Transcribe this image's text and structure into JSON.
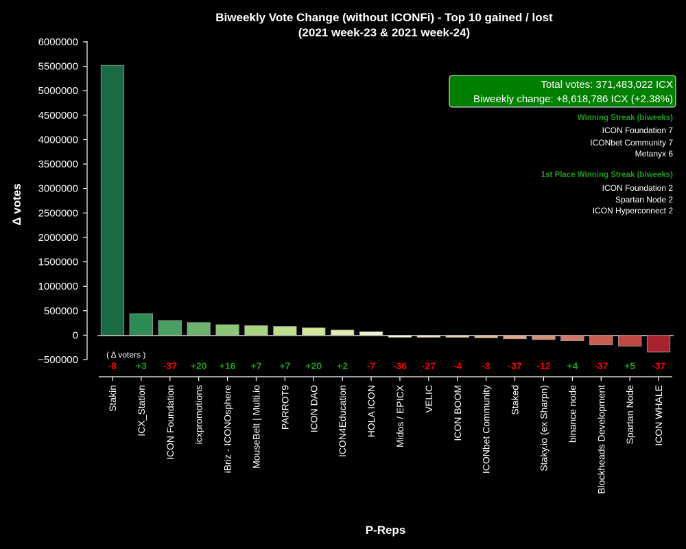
{
  "chart_data": {
    "type": "bar",
    "title_line1": "Biweekly Vote Change (without ICONFi) - Top 10 gained / lost",
    "title_line2": "(2021 week-23 & 2021 week-24)",
    "xlabel": "P-Reps",
    "ylabel": "Δ votes",
    "ylim": [
      -500000,
      6000000
    ],
    "yticks": [
      -500000,
      0,
      500000,
      1000000,
      1500000,
      2000000,
      2500000,
      3000000,
      3500000,
      4000000,
      4500000,
      5000000,
      5500000,
      6000000
    ],
    "categories": [
      "Stakin",
      "ICX_Station",
      "ICON Foundation",
      "icxpromotions",
      "iBriz - ICONOsphere",
      "MouseBelt | Multi.io",
      "PARROT9",
      "ICON DAO",
      "ICON4Education",
      "HOLA ICON",
      "Midos / EPICX",
      "VELIC",
      "ICON BOOM",
      "ICONbet Community",
      "Staked",
      "Staky.io (ex Sharpn)",
      "binance node",
      "Blockheads Development",
      "Spartan Node",
      "ICON WHALE"
    ],
    "values": [
      5520000,
      440000,
      300000,
      260000,
      215000,
      195000,
      180000,
      150000,
      105000,
      70000,
      -45000,
      -45000,
      -45000,
      -55000,
      -75000,
      -90000,
      -115000,
      -200000,
      -225000,
      -345000
    ],
    "colors": [
      "#1a6b45",
      "#2e8b57",
      "#4aa063",
      "#6cb36b",
      "#8cc574",
      "#a8d47e",
      "#bfe08a",
      "#d2e79a",
      "#e2eeb0",
      "#f1f5cc",
      "#f5f0d2",
      "#f0e0c0",
      "#ecd2b0",
      "#e6bea0",
      "#e0a888",
      "#d88f76",
      "#d27868",
      "#c9604f",
      "#bf4a43",
      "#a8232f"
    ],
    "delta_voters_label": "( Δ voters )",
    "delta_voters": [
      "-8",
      "+3",
      "-37",
      "+20",
      "+16",
      "+7",
      "+7",
      "+20",
      "+2",
      "-7",
      "-36",
      "-27",
      "-4",
      "-3",
      "-37",
      "-12",
      "+4",
      "-37",
      "+5",
      "-37"
    ],
    "grid": false
  },
  "info_box": {
    "line1": "Total votes: 371,483,022 ICX",
    "line2": "Biweekly change: +8,618,786 ICX (+2.38%)",
    "bg_color": "#008000"
  },
  "winning_streak": {
    "heading": "Winning Streak (biweeks)",
    "items": [
      "ICON Foundation  7",
      "ICONbet Community  7",
      "Metanyx  6"
    ]
  },
  "first_place_streak": {
    "heading": "1st Place Winning Streak (biweeks)",
    "items": [
      "ICON Foundation  2",
      "Spartan Node  2",
      "ICON Hyperconnect  2"
    ]
  },
  "colors": {
    "positive": "#1a9e1a",
    "negative": "#ff0000",
    "streak_heading": "#1a9e1a"
  }
}
